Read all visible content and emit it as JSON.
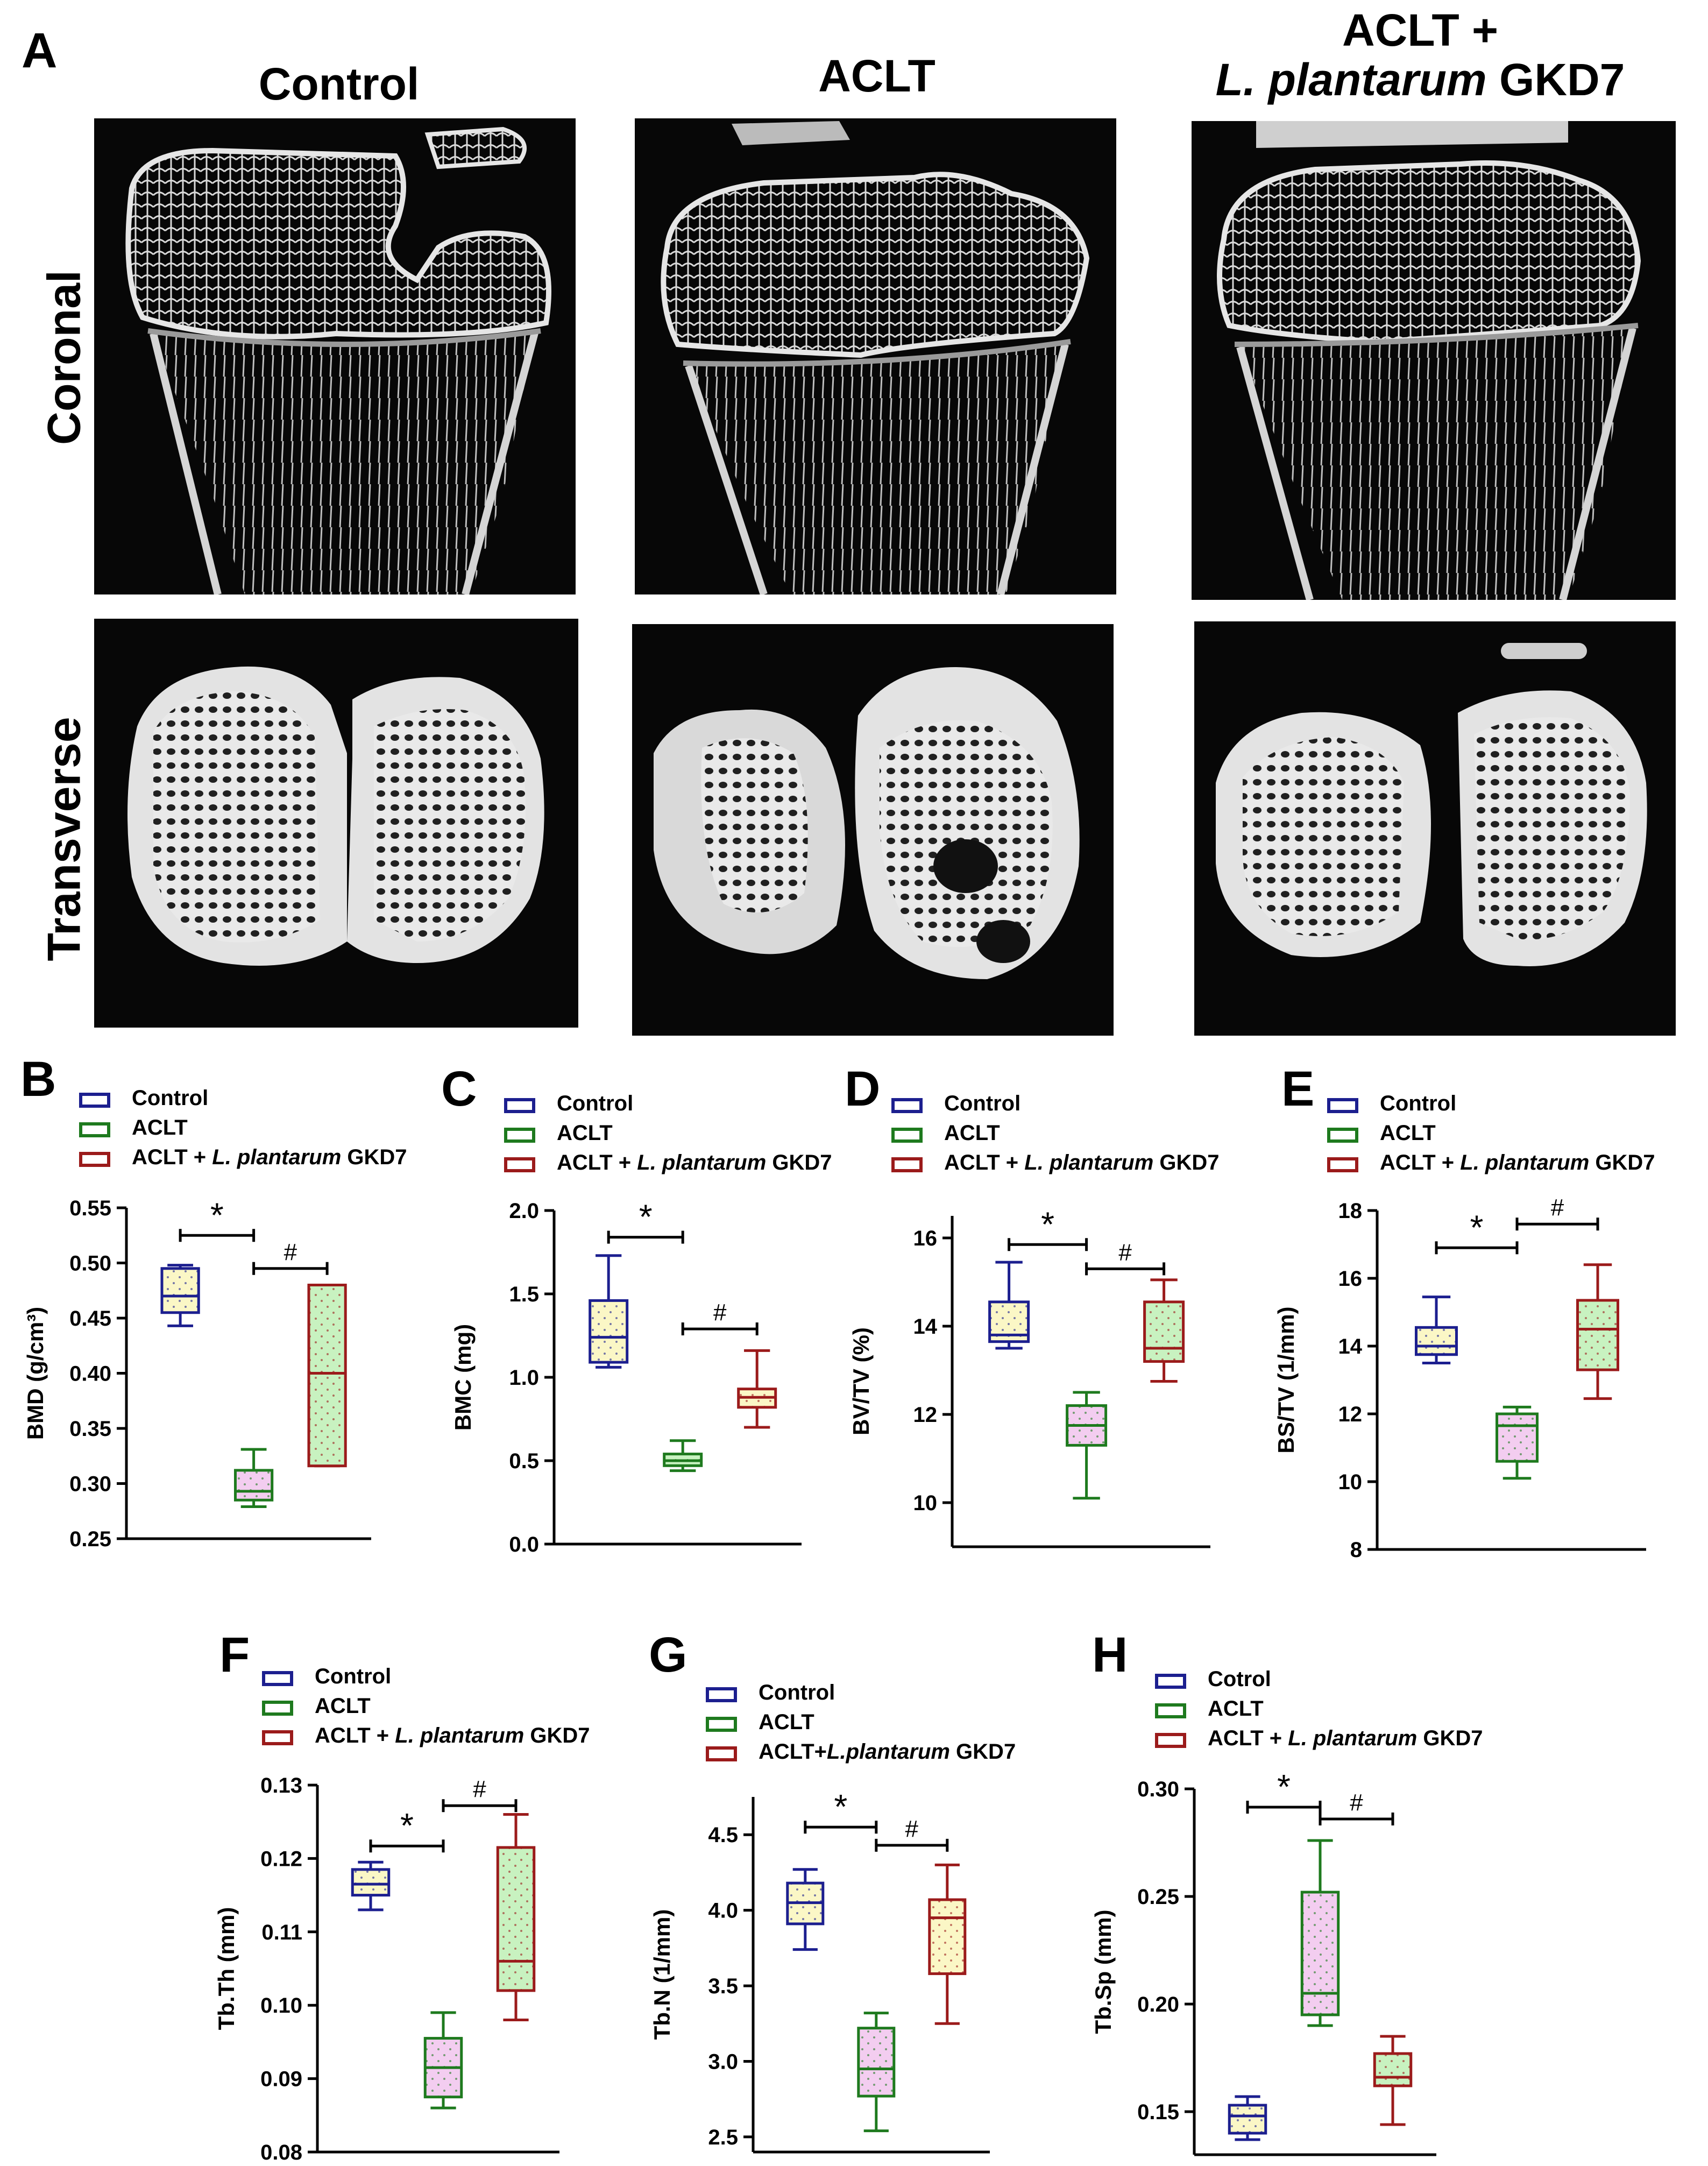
{
  "panel_a": {
    "letter": "A",
    "columns": [
      {
        "title_line1": "Control",
        "title_line2": "",
        "title_italic": "",
        "title_rest": ""
      },
      {
        "title_line1": "ACLT",
        "title_line2": "",
        "title_italic": "",
        "title_rest": ""
      },
      {
        "title_line1": "ACLT +",
        "title_line2": "",
        "title_italic": "L. plantarum",
        "title_rest": " GKD7"
      }
    ],
    "rows": [
      "Coronal",
      "Transverse"
    ]
  },
  "colors": {
    "control": "#1c1f8f",
    "aclt": "#1e7a1e",
    "gkd7": "#9b1b1b",
    "fill_yellow": "#fbf7c6",
    "fill_pink": "#f3cdf0",
    "fill_green": "#c8f2c0"
  },
  "chart_data": [
    {
      "letter": "B",
      "type": "box",
      "legend": [
        {
          "label": "Control",
          "label_italic": "",
          "label_rest": ""
        },
        {
          "label": "ACLT",
          "label_italic": "",
          "label_rest": ""
        },
        {
          "label": "ACLT + ",
          "label_italic": "L. plantarum",
          "label_rest": " GKD7"
        }
      ],
      "ylabel": "BMD (g/cm³)",
      "ylim": [
        0.25,
        0.55
      ],
      "yticks": [
        "0.25",
        "0.30",
        "0.35",
        "0.40",
        "0.45",
        "0.50",
        "0.55"
      ],
      "series": [
        {
          "name": "Control",
          "min": 0.443,
          "q1": 0.455,
          "median": 0.47,
          "q3": 0.495,
          "max": 0.498,
          "fill": "yellow"
        },
        {
          "name": "ACLT",
          "min": 0.279,
          "q1": 0.285,
          "median": 0.293,
          "q3": 0.312,
          "max": 0.331,
          "fill": "pink"
        },
        {
          "name": "ACLT + L. plantarum GKD7",
          "min": 0.316,
          "q1": 0.316,
          "median": 0.4,
          "q3": 0.48,
          "max": 0.48,
          "fill": "green"
        }
      ],
      "significance": [
        {
          "symbol": "*",
          "from": 0,
          "to": 1,
          "y": 0.525
        },
        {
          "symbol": "#",
          "from": 1,
          "to": 2,
          "y": 0.495
        }
      ]
    },
    {
      "letter": "C",
      "type": "box",
      "legend": [
        {
          "label": "Control",
          "label_italic": "",
          "label_rest": ""
        },
        {
          "label": "ACLT",
          "label_italic": "",
          "label_rest": ""
        },
        {
          "label": "ACLT + ",
          "label_italic": "L. plantarum",
          "label_rest": " GKD7"
        }
      ],
      "ylabel": "BMC (mg)",
      "ylim": [
        0.0,
        2.0
      ],
      "yticks": [
        "0.0",
        "0.5",
        "1.0",
        "1.5",
        "2.0"
      ],
      "series": [
        {
          "name": "Control",
          "min": 1.06,
          "q1": 1.09,
          "median": 1.24,
          "q3": 1.46,
          "max": 1.73,
          "fill": "yellow"
        },
        {
          "name": "ACLT",
          "min": 0.44,
          "q1": 0.47,
          "median": 0.5,
          "q3": 0.54,
          "max": 0.62,
          "fill": "green"
        },
        {
          "name": "ACLT + L. plantarum GKD7",
          "min": 0.7,
          "q1": 0.82,
          "median": 0.88,
          "q3": 0.93,
          "max": 1.16,
          "fill": "yellow"
        }
      ],
      "significance": [
        {
          "symbol": "*",
          "from": 0,
          "to": 1,
          "y": 1.84
        },
        {
          "symbol": "#",
          "from": 1,
          "to": 2,
          "y": 1.29
        }
      ]
    },
    {
      "letter": "D",
      "type": "box",
      "legend": [
        {
          "label": "Control",
          "label_italic": "",
          "label_rest": ""
        },
        {
          "label": "ACLT",
          "label_italic": "",
          "label_rest": ""
        },
        {
          "label": "ACLT + ",
          "label_italic": "L. plantarum",
          "label_rest": " GKD7"
        }
      ],
      "ylabel": "BV/TV (%)",
      "ylim": [
        9,
        16.5
      ],
      "yticks": [
        "10",
        "12",
        "14",
        "16"
      ],
      "series": [
        {
          "name": "Control",
          "min": 13.5,
          "q1": 13.65,
          "median": 13.8,
          "q3": 14.55,
          "max": 15.45,
          "fill": "yellow"
        },
        {
          "name": "ACLT",
          "min": 10.1,
          "q1": 11.3,
          "median": 11.75,
          "q3": 12.2,
          "max": 12.5,
          "fill": "pink"
        },
        {
          "name": "ACLT + L. plantarum GKD7",
          "min": 12.75,
          "q1": 13.2,
          "median": 13.5,
          "q3": 14.55,
          "max": 15.05,
          "fill": "green"
        }
      ],
      "significance": [
        {
          "symbol": "*",
          "from": 0,
          "to": 1,
          "y": 15.85
        },
        {
          "symbol": "#",
          "from": 1,
          "to": 2,
          "y": 15.3
        }
      ]
    },
    {
      "letter": "E",
      "type": "box",
      "legend": [
        {
          "label": "Control",
          "label_italic": "",
          "label_rest": ""
        },
        {
          "label": "ACLT",
          "label_italic": "",
          "label_rest": ""
        },
        {
          "label": "ACLT + ",
          "label_italic": "L. plantarum",
          "label_rest": " GKD7"
        }
      ],
      "ylabel": "BS/TV (1/mm)",
      "ylim": [
        8,
        18
      ],
      "yticks": [
        "8",
        "10",
        "12",
        "14",
        "16",
        "18"
      ],
      "series": [
        {
          "name": "Control",
          "min": 13.5,
          "q1": 13.75,
          "median": 14.0,
          "q3": 14.55,
          "max": 15.45,
          "fill": "yellow"
        },
        {
          "name": "ACLT",
          "min": 10.1,
          "q1": 10.6,
          "median": 11.65,
          "q3": 12.0,
          "max": 12.2,
          "fill": "pink"
        },
        {
          "name": "ACLT + L. plantarum GKD7",
          "min": 12.45,
          "q1": 13.3,
          "median": 14.5,
          "q3": 15.35,
          "max": 16.4,
          "fill": "green"
        }
      ],
      "significance": [
        {
          "symbol": "*",
          "from": 0,
          "to": 1,
          "y": 16.9
        },
        {
          "symbol": "#",
          "from": 1,
          "to": 2,
          "y": 17.6
        }
      ]
    },
    {
      "letter": "F",
      "type": "box",
      "legend": [
        {
          "label": "Control",
          "label_italic": "",
          "label_rest": ""
        },
        {
          "label": "ACLT",
          "label_italic": "",
          "label_rest": ""
        },
        {
          "label": "ACLT + ",
          "label_italic": "L. plantarum",
          "label_rest": " GKD7"
        }
      ],
      "ylabel": "Tb.Th (mm)",
      "ylim": [
        0.08,
        0.13
      ],
      "yticks": [
        "0.08",
        "0.09",
        "0.10",
        "0.11",
        "0.12",
        "0.13"
      ],
      "series": [
        {
          "name": "Control",
          "min": 0.113,
          "q1": 0.115,
          "median": 0.1165,
          "q3": 0.1185,
          "max": 0.1195,
          "fill": "yellow"
        },
        {
          "name": "ACLT",
          "min": 0.086,
          "q1": 0.0875,
          "median": 0.0915,
          "q3": 0.0955,
          "max": 0.099,
          "fill": "pink"
        },
        {
          "name": "ACLT + L. plantarum GKD7",
          "min": 0.098,
          "q1": 0.102,
          "median": 0.106,
          "q3": 0.1215,
          "max": 0.126,
          "fill": "green"
        }
      ],
      "significance": [
        {
          "symbol": "*",
          "from": 0,
          "to": 1,
          "y": 0.1217
        },
        {
          "symbol": "#",
          "from": 1,
          "to": 2,
          "y": 0.1272
        }
      ]
    },
    {
      "letter": "G",
      "type": "box",
      "legend": [
        {
          "label": "Control",
          "label_italic": "",
          "label_rest": ""
        },
        {
          "label": "ACLT",
          "label_italic": "",
          "label_rest": ""
        },
        {
          "label": "ACLT+",
          "label_italic": "L.plantarum",
          "label_rest": " GKD7"
        }
      ],
      "ylabel": "Tb.N (1/mm)",
      "ylim": [
        2.4,
        4.75
      ],
      "yticks": [
        "2.5",
        "3.0",
        "3.5",
        "4.0",
        "4.5"
      ],
      "series": [
        {
          "name": "Control",
          "min": 3.74,
          "q1": 3.91,
          "median": 4.05,
          "q3": 4.18,
          "max": 4.27,
          "fill": "yellow"
        },
        {
          "name": "ACLT",
          "min": 2.54,
          "q1": 2.77,
          "median": 2.95,
          "q3": 3.22,
          "max": 3.32,
          "fill": "pink"
        },
        {
          "name": "ACLT + L. plantarum GKD7",
          "min": 3.25,
          "q1": 3.58,
          "median": 3.95,
          "q3": 4.07,
          "max": 4.3,
          "fill": "yellow"
        }
      ],
      "significance": [
        {
          "symbol": "*",
          "from": 0,
          "to": 1,
          "y": 4.55
        },
        {
          "symbol": "#",
          "from": 1,
          "to": 2,
          "y": 4.43
        }
      ]
    },
    {
      "letter": "H",
      "type": "box",
      "legend": [
        {
          "label": "Cotrol",
          "label_italic": "",
          "label_rest": ""
        },
        {
          "label": "ACLT",
          "label_italic": "",
          "label_rest": ""
        },
        {
          "label": "ACLT + ",
          "label_italic": "L. plantarum",
          "label_rest": " GKD7"
        }
      ],
      "ylabel": "Tb.Sp (mm)",
      "ylim": [
        0.13,
        0.3
      ],
      "yticks": [
        "0.15",
        "0.20",
        "0.25",
        "0.30"
      ],
      "series": [
        {
          "name": "Control",
          "min": 0.137,
          "q1": 0.14,
          "median": 0.148,
          "q3": 0.153,
          "max": 0.157,
          "fill": "yellow"
        },
        {
          "name": "ACLT",
          "min": 0.19,
          "q1": 0.195,
          "median": 0.205,
          "q3": 0.252,
          "max": 0.276,
          "fill": "pink"
        },
        {
          "name": "ACLT + L. plantarum GKD7",
          "min": 0.144,
          "q1": 0.162,
          "median": 0.166,
          "q3": 0.177,
          "max": 0.185,
          "fill": "green"
        }
      ],
      "significance": [
        {
          "symbol": "*",
          "from": 0,
          "to": 1,
          "y": 0.2915
        },
        {
          "symbol": "#",
          "from": 1,
          "to": 2,
          "y": 0.286
        }
      ]
    }
  ]
}
